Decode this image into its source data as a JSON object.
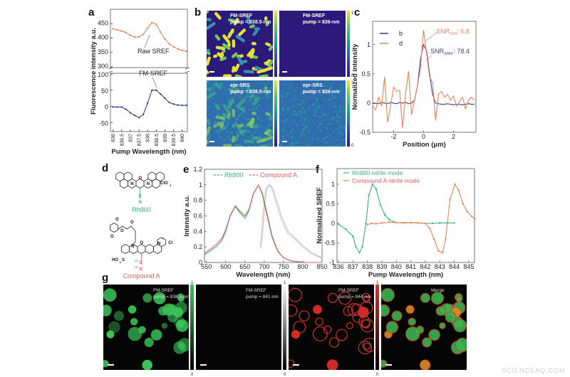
{
  "panel_labels": {
    "a": "a",
    "b": "b",
    "c": "c",
    "d": "d",
    "e": "e",
    "f": "f",
    "g": "g"
  },
  "watermark": "SCIENCEAQ.COM",
  "chart_data": [
    {
      "id": "a",
      "type": "line",
      "xlabel": "Pump Wavelength (nm)",
      "ylabel": "Fluorescence intensity a.u.",
      "x_ticks": [
        "836",
        "836.5",
        "837",
        "837.5",
        "838",
        "838.5",
        "839",
        "839.5",
        "840"
      ],
      "broken_y_axis": true,
      "upper_y_ticks": [
        "300",
        "350",
        "400",
        "450"
      ],
      "lower_y_ticks": [
        "-50",
        "0",
        "50",
        "100"
      ],
      "upper_ylim": [
        300,
        500
      ],
      "lower_ylim": [
        -78,
        100
      ],
      "xlim": [
        835.85,
        840.3
      ],
      "annotations": [
        "Raw SREF",
        "FM-SREF"
      ],
      "series": [
        {
          "name": "Raw SREF",
          "color": "#e8825a",
          "axis": "upper",
          "x": [
            836,
            836.25,
            836.5,
            836.75,
            837,
            837.25,
            837.5,
            837.75,
            838,
            838.25,
            838.5,
            838.75,
            839,
            839.25,
            839.5,
            839.75,
            840,
            840.25
          ],
          "y": [
            432,
            428,
            424,
            419,
            410,
            403,
            404,
            413,
            435,
            454,
            448,
            420,
            397,
            380,
            370,
            362,
            357,
            354
          ]
        },
        {
          "name": "FM-SREF",
          "color": "#3a3f8f",
          "axis": "lower",
          "x": [
            836,
            836.25,
            836.5,
            836.75,
            837,
            837.25,
            837.5,
            837.75,
            838,
            838.25,
            838.5,
            838.75,
            839,
            839.25,
            839.5,
            839.75,
            840,
            840.25
          ],
          "y": [
            -2,
            -2,
            -2,
            -9,
            -20,
            -28,
            -35,
            -25,
            10,
            50,
            50,
            38,
            25,
            12,
            7,
            4,
            3,
            3
          ]
        }
      ]
    },
    {
      "id": "c",
      "type": "line",
      "xlabel": "Position (μm)",
      "ylabel": "Normalized intensity",
      "xlim": [
        -3.4,
        3.5
      ],
      "ylim": [
        -0.5,
        1.4
      ],
      "x_ticks": [
        "-2",
        "0",
        "2"
      ],
      "y_ticks": [
        "-0.5",
        "0",
        "0.5",
        "1"
      ],
      "legend": [
        "b",
        "d"
      ],
      "legend_position": "top-left",
      "annotations": [
        {
          "text": "SNR",
          "sub": "SRS",
          "value": ": 6.8",
          "color": "#e8825a"
        },
        {
          "text": "SNR",
          "sub": "SREF",
          "value": ": 78.4",
          "color": "#3a3f8f"
        }
      ],
      "series": [
        {
          "name": "b",
          "color": "#3a3f8f",
          "x": [
            -3.4,
            -3.2,
            -3,
            -2.8,
            -2.6,
            -2.4,
            -2.2,
            -2,
            -1.8,
            -1.6,
            -1.4,
            -1.2,
            -1,
            -0.8,
            -0.6,
            -0.4,
            -0.2,
            0,
            0.2,
            0.4,
            0.6,
            0.8,
            1,
            1.2,
            1.4,
            1.6,
            1.8,
            2,
            2.2,
            2.4,
            2.6,
            2.8,
            3,
            3.2,
            3.4
          ],
          "y": [
            -0.01,
            0,
            -0.01,
            0.01,
            0,
            -0.01,
            0.01,
            0,
            -0.01,
            0.01,
            0,
            0.01,
            -0.01,
            0,
            0.05,
            0.3,
            0.75,
            1.0,
            0.9,
            0.5,
            0.15,
            0,
            -0.01,
            -0.02,
            -0.02,
            -0.01,
            -0.02,
            -0.03,
            -0.02,
            -0.02,
            -0.03,
            -0.02,
            -0.01,
            -0.02,
            -0.02
          ]
        },
        {
          "name": "d",
          "color": "#e8825a",
          "x": [
            -3.4,
            -3.2,
            -3,
            -2.8,
            -2.6,
            -2.4,
            -2.2,
            -2,
            -1.8,
            -1.6,
            -1.4,
            -1.2,
            -1,
            -0.8,
            -0.6,
            -0.4,
            -0.2,
            0,
            0.2,
            0.4,
            0.6,
            0.8,
            1,
            1.2,
            1.4,
            1.6,
            1.8,
            2,
            2.2,
            2.4,
            2.6,
            2.8,
            3,
            3.2,
            3.4
          ],
          "y": [
            -0.05,
            -0.12,
            0.1,
            -0.05,
            0.45,
            -0.33,
            -0.05,
            0.27,
            0.2,
            0.22,
            -0.43,
            0.15,
            0.55,
            -0.2,
            0.05,
            0.3,
            0.6,
            1.25,
            0.85,
            0.45,
            0.35,
            -0.3,
            0.15,
            0.2,
            0.1,
            0.15,
            0.05,
            0.12,
            -0.05,
            0.02,
            0.1,
            -0.1,
            0.05,
            0.1,
            0.05
          ]
        }
      ]
    },
    {
      "id": "e",
      "type": "line",
      "xlabel": "Wavelength (nm)",
      "ylabel": "Intensity a.u.",
      "xlim": [
        545,
        850
      ],
      "ylim": [
        0,
        1.2
      ],
      "x_ticks": [
        "550",
        "600",
        "650",
        "700",
        "750",
        "800",
        "850"
      ],
      "y_ticks": [
        "0",
        "0.2",
        "0.4",
        "0.6",
        "0.8",
        "1",
        "1.2"
      ],
      "legend": [
        "Rh800",
        "Compound A"
      ],
      "legend_position": "top",
      "series": [
        {
          "name": "Rh800",
          "color": "#3bb27a",
          "x": [
            545,
            560,
            575,
            590,
            600,
            612,
            625,
            637,
            650,
            660,
            672,
            685,
            695,
            705,
            720,
            735,
            750,
            770,
            790,
            810,
            850
          ],
          "y": [
            0.1,
            0.15,
            0.2,
            0.28,
            0.4,
            0.6,
            0.72,
            0.64,
            0.57,
            0.66,
            0.88,
            1.0,
            0.9,
            0.68,
            0.35,
            0.15,
            0.06,
            0.02,
            0.01,
            0,
            0
          ]
        },
        {
          "name": "Compound A",
          "color": "#d9625e",
          "x": [
            545,
            560,
            575,
            590,
            600,
            612,
            625,
            637,
            650,
            660,
            672,
            685,
            695,
            705,
            720,
            735,
            750,
            770,
            790,
            810,
            850
          ],
          "y": [
            0.12,
            0.17,
            0.23,
            0.31,
            0.42,
            0.61,
            0.73,
            0.66,
            0.6,
            0.68,
            0.89,
            1.0,
            0.88,
            0.65,
            0.33,
            0.14,
            0.06,
            0.02,
            0.01,
            0,
            0
          ]
        },
        {
          "name": "Rh800 emission",
          "color": "#b9d8c6",
          "x": [
            690,
            695,
            700,
            705,
            712,
            720,
            730,
            745,
            760,
            780,
            800,
            820,
            850
          ],
          "y": [
            0.2,
            0.5,
            0.8,
            0.96,
            1.0,
            0.95,
            0.78,
            0.55,
            0.38,
            0.3,
            0.2,
            0.12,
            0.05
          ]
        },
        {
          "name": "Compound A emission",
          "color": "#d8c0c0",
          "x": [
            692,
            697,
            702,
            707,
            714,
            722,
            732,
            747,
            762,
            782,
            802,
            822,
            850
          ],
          "y": [
            0.18,
            0.45,
            0.78,
            0.95,
            1.0,
            0.96,
            0.8,
            0.57,
            0.4,
            0.31,
            0.21,
            0.13,
            0.06
          ]
        }
      ]
    },
    {
      "id": "f",
      "type": "line",
      "xlabel": "Pump Wavelength (nm)",
      "ylabel": "Normalized SREF",
      "xlim": [
        835.9,
        845.4
      ],
      "ylim": [
        -1,
        1.4
      ],
      "x_ticks": [
        "836",
        "837",
        "838",
        "839",
        "840",
        "841",
        "842",
        "843",
        "844",
        "845"
      ],
      "y_ticks": [
        "-1",
        "-0.5",
        "0",
        "0.5",
        "1"
      ],
      "legend": [
        "Rh800 nitrile mode",
        "Compound A nitrile mode"
      ],
      "legend_position": "top-left",
      "series": [
        {
          "name": "Rh800 nitrile mode",
          "color": "#3bb27a",
          "x": [
            836,
            836.5,
            837,
            837.2,
            837.45,
            837.65,
            837.9,
            838.1,
            838.35,
            838.6,
            838.9,
            839.2,
            839.5,
            839.8,
            840,
            840.5,
            841,
            841.5,
            842,
            842.5,
            843,
            843.5,
            844
          ],
          "y": [
            -0.02,
            -0.15,
            -0.33,
            -0.6,
            -0.75,
            -0.6,
            0,
            0.72,
            1.0,
            0.88,
            0.47,
            0.22,
            0.1,
            0.04,
            0.02,
            0.01,
            0.02,
            0.01,
            0,
            0,
            0.01,
            0.01,
            0.01
          ]
        },
        {
          "name": "Compound A nitrile mode",
          "color": "#e8825a",
          "x": [
            838,
            838.3,
            838.6,
            839,
            839.5,
            840,
            840.5,
            841,
            841.5,
            842,
            842.3,
            842.6,
            842.9,
            843.2,
            843.4,
            843.7,
            844.05,
            844.3,
            844.6,
            844.9,
            845.2,
            845.4
          ],
          "y": [
            -0.03,
            0,
            -0.01,
            0.01,
            0.03,
            0.02,
            0.01,
            0.02,
            0.01,
            0,
            -0.12,
            -0.4,
            -0.7,
            -0.75,
            -0.4,
            0.6,
            1.0,
            0.85,
            0.5,
            0.3,
            0.18,
            0.12
          ]
        }
      ]
    }
  ],
  "panel_b": {
    "images": [
      {
        "title": "FM-SREF",
        "subtitle": "pump = 838.5-nm",
        "content": "rods"
      },
      {
        "title": "FM-SREF",
        "subtitle": "pump = 836-nm",
        "content": "blank"
      },
      {
        "title": "epr-SRS",
        "subtitle": "pump = 838.5-nm",
        "content": "noisy-rods"
      },
      {
        "title": "epr-SRS",
        "subtitle": "pump = 836-nm",
        "content": "noise"
      }
    ],
    "colorbar_max": "1",
    "colorbar_min": "0",
    "colormap": [
      "#2b1a7a",
      "#2f4fa0",
      "#1f9a8a",
      "#58c46a",
      "#f2e33a"
    ]
  },
  "panel_d": {
    "molecules": [
      {
        "name": "Rh800",
        "color": "#3bb27a",
        "atoms": [
          "N",
          "O",
          "N",
          "+",
          "ClO",
          "4",
          "-",
          "C",
          "N"
        ]
      },
      {
        "name": "Compound A",
        "color": "#d9625e",
        "atoms": [
          "O",
          "O",
          "O",
          "O",
          "N",
          "O",
          "N",
          "+",
          "Cl",
          "-",
          "HO",
          "3",
          "S",
          "13",
          "C",
          "15",
          "N"
        ]
      }
    ]
  },
  "panel_g": {
    "images": [
      {
        "title": "FM-SREF",
        "subtitle": "pump = 838.5-nm",
        "color": "#3cc45a",
        "colorbar": [
          "#000000",
          "#3cc45a"
        ]
      },
      {
        "title": "FM-SREF",
        "subtitle": "pump = 841-nm",
        "color": "#333333",
        "colorbar": [
          "#000000",
          "#ffffff"
        ]
      },
      {
        "title": "FM-SREF",
        "subtitle": "pump = 844-nm",
        "color": "#e0302a",
        "colorbar": [
          "#000000",
          "#e0302a"
        ]
      },
      {
        "title": "Merge",
        "subtitle": "",
        "color": "merge"
      }
    ],
    "colorbar_max": "1",
    "colorbar_min": "0"
  }
}
